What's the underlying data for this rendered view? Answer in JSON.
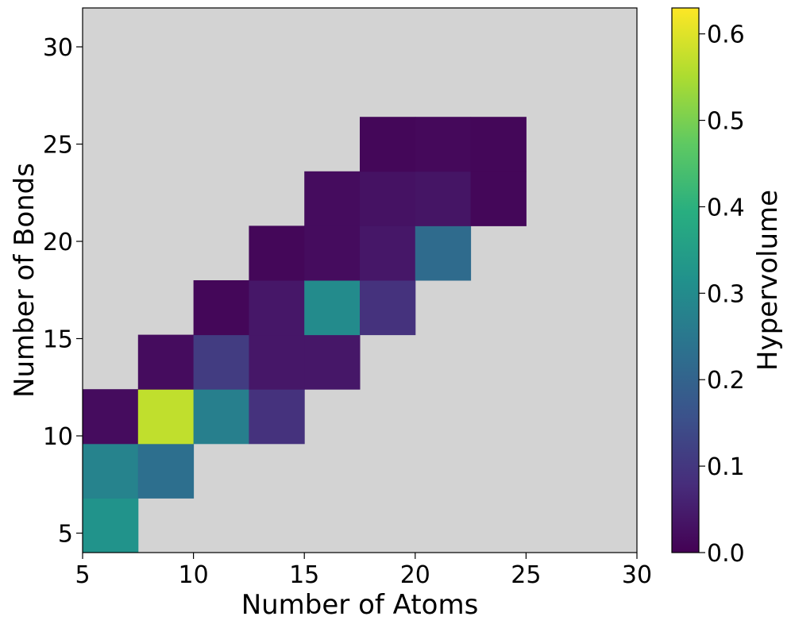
{
  "chart_data": {
    "type": "heatmap",
    "title": "",
    "xlabel": "Number of Atoms",
    "ylabel": "Number of Bonds",
    "xlim": [
      5,
      30
    ],
    "ylim": [
      4,
      32
    ],
    "x_ticks": [
      5,
      10,
      15,
      20,
      25,
      30
    ],
    "y_ticks": [
      5,
      10,
      15,
      20,
      25,
      30
    ],
    "background_color": "#d3d3d3",
    "colormap": "viridis",
    "colorbar": {
      "label": "Hypervolume",
      "min": 0.0,
      "max": 0.63,
      "ticks": [
        "0.0",
        "0.1",
        "0.2",
        "0.3",
        "0.4",
        "0.5",
        "0.6"
      ]
    },
    "cells": [
      {
        "x0": 5,
        "x1": 7.5,
        "y0": 4,
        "y1": 6.8,
        "value": 0.32
      },
      {
        "x0": 5,
        "x1": 7.5,
        "y0": 6.8,
        "y1": 9.6,
        "value": 0.28
      },
      {
        "x0": 5,
        "x1": 7.5,
        "y0": 9.6,
        "y1": 12.4,
        "value": 0.02
      },
      {
        "x0": 7.5,
        "x1": 10,
        "y0": 6.8,
        "y1": 9.6,
        "value": 0.23
      },
      {
        "x0": 7.5,
        "x1": 10,
        "y0": 9.6,
        "y1": 12.4,
        "value": 0.57
      },
      {
        "x0": 7.5,
        "x1": 10,
        "y0": 12.4,
        "y1": 15.2,
        "value": 0.02
      },
      {
        "x0": 10,
        "x1": 12.5,
        "y0": 9.6,
        "y1": 12.4,
        "value": 0.27
      },
      {
        "x0": 10,
        "x1": 12.5,
        "y0": 12.4,
        "y1": 15.2,
        "value": 0.11
      },
      {
        "x0": 10,
        "x1": 12.5,
        "y0": 15.2,
        "y1": 18.0,
        "value": 0.01
      },
      {
        "x0": 12.5,
        "x1": 15,
        "y0": 9.6,
        "y1": 12.4,
        "value": 0.09
      },
      {
        "x0": 12.5,
        "x1": 15,
        "y0": 12.4,
        "y1": 15.2,
        "value": 0.04
      },
      {
        "x0": 12.5,
        "x1": 15,
        "y0": 15.2,
        "y1": 18.0,
        "value": 0.04
      },
      {
        "x0": 12.5,
        "x1": 15,
        "y0": 18.0,
        "y1": 20.8,
        "value": 0.01
      },
      {
        "x0": 15,
        "x1": 17.5,
        "y0": 12.4,
        "y1": 15.2,
        "value": 0.04
      },
      {
        "x0": 15,
        "x1": 17.5,
        "y0": 15.2,
        "y1": 18.0,
        "value": 0.3
      },
      {
        "x0": 15,
        "x1": 17.5,
        "y0": 18.0,
        "y1": 20.8,
        "value": 0.02
      },
      {
        "x0": 15,
        "x1": 17.5,
        "y0": 20.8,
        "y1": 23.6,
        "value": 0.02
      },
      {
        "x0": 17.5,
        "x1": 20,
        "y0": 15.2,
        "y1": 18.0,
        "value": 0.09
      },
      {
        "x0": 17.5,
        "x1": 20,
        "y0": 18.0,
        "y1": 20.8,
        "value": 0.04
      },
      {
        "x0": 17.5,
        "x1": 20,
        "y0": 20.8,
        "y1": 23.6,
        "value": 0.03
      },
      {
        "x0": 17.5,
        "x1": 20,
        "y0": 23.6,
        "y1": 26.4,
        "value": 0.01
      },
      {
        "x0": 20,
        "x1": 22.5,
        "y0": 18.0,
        "y1": 20.8,
        "value": 0.22
      },
      {
        "x0": 20,
        "x1": 22.5,
        "y0": 20.8,
        "y1": 23.6,
        "value": 0.035
      },
      {
        "x0": 20,
        "x1": 22.5,
        "y0": 23.6,
        "y1": 26.4,
        "value": 0.015
      },
      {
        "x0": 22.5,
        "x1": 25,
        "y0": 20.8,
        "y1": 23.6,
        "value": 0.01
      },
      {
        "x0": 22.5,
        "x1": 25,
        "y0": 23.6,
        "y1": 26.4,
        "value": 0.01
      }
    ]
  }
}
